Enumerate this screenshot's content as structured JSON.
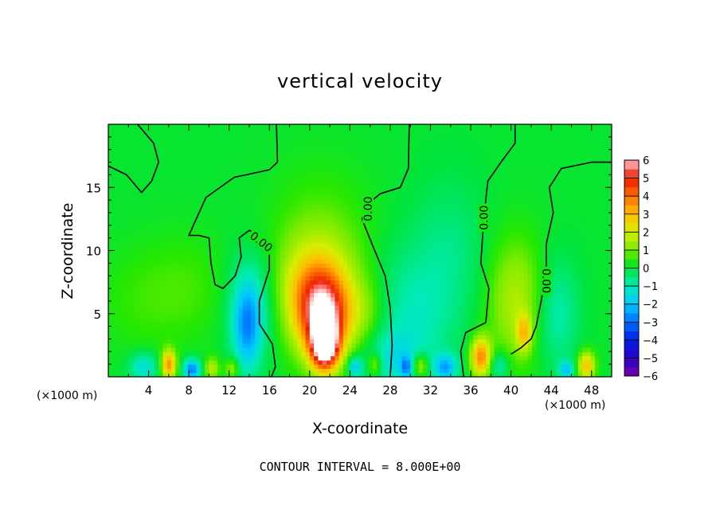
{
  "chart_data": {
    "type": "heatmap",
    "title": "vertical velocity",
    "xlabel": "X-coordinate",
    "ylabel": "Z-coordinate",
    "x_unit_label": "(×1000 m)",
    "x_unit_label_right": "(×1000 m)",
    "xlim": [
      0,
      50
    ],
    "ylim": [
      0,
      20
    ],
    "x_ticks": [
      4,
      8,
      12,
      16,
      20,
      24,
      28,
      32,
      36,
      40,
      44,
      48
    ],
    "y_ticks": [
      5,
      10,
      15
    ],
    "colorbar": {
      "ticks": [
        6,
        5,
        4,
        3,
        2,
        1,
        0,
        -1,
        -2,
        -3,
        -4,
        -5,
        -6
      ],
      "range": [
        -6,
        6
      ]
    },
    "contour_label": "0.00",
    "note": "CONTOUR INTERVAL = 8.000E+00",
    "field_background_value": 0.1,
    "features": [
      {
        "x": 21.5,
        "z": 2.5,
        "value": 6.0,
        "sx": 0.9,
        "sz": 1.3
      },
      {
        "x": 21.5,
        "z": 4.5,
        "value": 4.2,
        "sx": 1.6,
        "sz": 2.2
      },
      {
        "x": 20.5,
        "z": 6.5,
        "value": 2.6,
        "sx": 2.2,
        "sz": 2.5
      },
      {
        "x": 21.0,
        "z": 8.5,
        "value": 1.2,
        "sx": 3.5,
        "sz": 4.5
      },
      {
        "x": 25.5,
        "z": 5.0,
        "value": 0.9,
        "sx": 1.5,
        "sz": 2.0
      },
      {
        "x": 13.8,
        "z": 4.0,
        "value": -2.4,
        "sx": 1.0,
        "sz": 2.5
      },
      {
        "x": 14.5,
        "z": 6.0,
        "value": -1.0,
        "sx": 2.0,
        "sz": 3.0
      },
      {
        "x": 30.0,
        "z": 4.5,
        "value": -1.1,
        "sx": 3.0,
        "sz": 4.0
      },
      {
        "x": 28.0,
        "z": 1.5,
        "value": -1.0,
        "sx": 2.0,
        "sz": 1.5
      },
      {
        "x": 40.5,
        "z": 6.0,
        "value": 1.5,
        "sx": 2.0,
        "sz": 3.5
      },
      {
        "x": 41.3,
        "z": 3.5,
        "value": 2.2,
        "sx": 0.5,
        "sz": 1.0
      },
      {
        "x": 44.5,
        "z": 5.0,
        "value": -1.1,
        "sx": 1.5,
        "sz": 3.0
      },
      {
        "x": 37.0,
        "z": 1.6,
        "value": 3.6,
        "sx": 0.7,
        "sz": 1.1
      },
      {
        "x": 6.0,
        "z": 1.0,
        "value": 3.4,
        "sx": 0.5,
        "sz": 0.8
      },
      {
        "x": 8.3,
        "z": 0.6,
        "value": -3.0,
        "sx": 0.6,
        "sz": 0.6
      },
      {
        "x": 10.3,
        "z": 0.7,
        "value": 1.6,
        "sx": 0.5,
        "sz": 0.6
      },
      {
        "x": 12.3,
        "z": 0.7,
        "value": 1.4,
        "sx": 0.5,
        "sz": 0.6
      },
      {
        "x": 3.5,
        "z": 0.8,
        "value": -1.6,
        "sx": 1.0,
        "sz": 0.8
      },
      {
        "x": 31.0,
        "z": 0.9,
        "value": 2.0,
        "sx": 0.6,
        "sz": 0.7
      },
      {
        "x": 33.5,
        "z": 0.8,
        "value": -2.2,
        "sx": 0.8,
        "sz": 0.7
      },
      {
        "x": 29.6,
        "z": 0.8,
        "value": -2.0,
        "sx": 0.4,
        "sz": 0.6
      },
      {
        "x": 47.5,
        "z": 0.9,
        "value": 2.8,
        "sx": 0.6,
        "sz": 0.8
      },
      {
        "x": 45.5,
        "z": 0.6,
        "value": -2.0,
        "sx": 0.5,
        "sz": 0.5
      },
      {
        "x": 38.8,
        "z": 0.9,
        "value": -1.3,
        "sx": 0.7,
        "sz": 0.8
      },
      {
        "x": 24.5,
        "z": 0.8,
        "value": -2.0,
        "sx": 0.5,
        "sz": 0.6
      },
      {
        "x": 26.5,
        "z": 1.0,
        "value": 1.6,
        "sx": 0.5,
        "sz": 0.7
      },
      {
        "x": 8.0,
        "z": 7.0,
        "value": 0.5,
        "sx": 3.0,
        "sz": 3.0
      },
      {
        "x": 34.0,
        "z": 10.0,
        "value": -0.6,
        "sx": 2.5,
        "sz": 4.0
      },
      {
        "x": 3.0,
        "z": 6.0,
        "value": 0.4,
        "sx": 3.0,
        "sz": 3.0
      }
    ],
    "zero_contours": [
      [
        [
          2.9,
          20
        ],
        [
          4.5,
          18.5
        ],
        [
          5.0,
          17.0
        ],
        [
          4.3,
          15.5
        ],
        [
          3.3,
          14.6
        ],
        [
          1.8,
          16.0
        ],
        [
          0,
          16.7
        ]
      ],
      [
        [
          16.7,
          20
        ],
        [
          16.8,
          17.0
        ],
        [
          16.0,
          16.4
        ],
        [
          12.5,
          15.8
        ],
        [
          9.7,
          14.2
        ],
        [
          8.0,
          11.2
        ],
        [
          9.0,
          11.2
        ],
        [
          10.0,
          11.0
        ],
        [
          10.2,
          9.0
        ],
        [
          10.6,
          7.3
        ],
        [
          11.4,
          7.0
        ],
        [
          12.6,
          8.0
        ],
        [
          13.2,
          9.5
        ],
        [
          13.0,
          11.0
        ],
        [
          14.0,
          11.6
        ],
        [
          15.5,
          11.0
        ],
        [
          16.0,
          10.0
        ],
        [
          16.0,
          8.5
        ],
        [
          15.0,
          6.0
        ],
        [
          15.0,
          4.2
        ],
        [
          16.3,
          2.6
        ],
        [
          16.6,
          0.8
        ],
        [
          16.2,
          0
        ]
      ],
      [
        [
          29.9,
          20
        ],
        [
          29.8,
          16.5
        ],
        [
          29.0,
          15.0
        ],
        [
          27.0,
          14.5
        ],
        [
          25.8,
          13.7
        ],
        [
          25.2,
          12.5
        ],
        [
          26.2,
          10.5
        ],
        [
          27.5,
          8.0
        ],
        [
          28.0,
          5.5
        ],
        [
          28.2,
          2.5
        ],
        [
          28.0,
          0
        ]
      ],
      [
        [
          40.4,
          20
        ],
        [
          40.4,
          18.5
        ],
        [
          39.0,
          17.0
        ],
        [
          37.7,
          15.5
        ],
        [
          37.3,
          12.6
        ],
        [
          37.0,
          9.0
        ],
        [
          37.8,
          7.0
        ],
        [
          37.5,
          4.3
        ],
        [
          35.5,
          3.5
        ],
        [
          35.0,
          2.0
        ],
        [
          35.3,
          0
        ]
      ],
      [
        [
          50,
          17.0
        ],
        [
          48.0,
          17.0
        ],
        [
          45.0,
          16.5
        ],
        [
          43.8,
          15.0
        ],
        [
          44.2,
          13.0
        ],
        [
          43.5,
          10.5
        ],
        [
          43.5,
          8.5
        ],
        [
          43.0,
          6.0
        ],
        [
          42.5,
          4.0
        ],
        [
          42.0,
          3.0
        ],
        [
          41.0,
          2.3
        ],
        [
          40.0,
          1.8
        ]
      ]
    ],
    "contour_label_positions": [
      {
        "x": 15.2,
        "z": 10.7,
        "angle": 38
      },
      {
        "x": 25.8,
        "z": 13.3,
        "angle": -90
      },
      {
        "x": 37.3,
        "z": 12.6,
        "angle": -90
      },
      {
        "x": 43.5,
        "z": 7.6,
        "angle": 90
      }
    ]
  }
}
